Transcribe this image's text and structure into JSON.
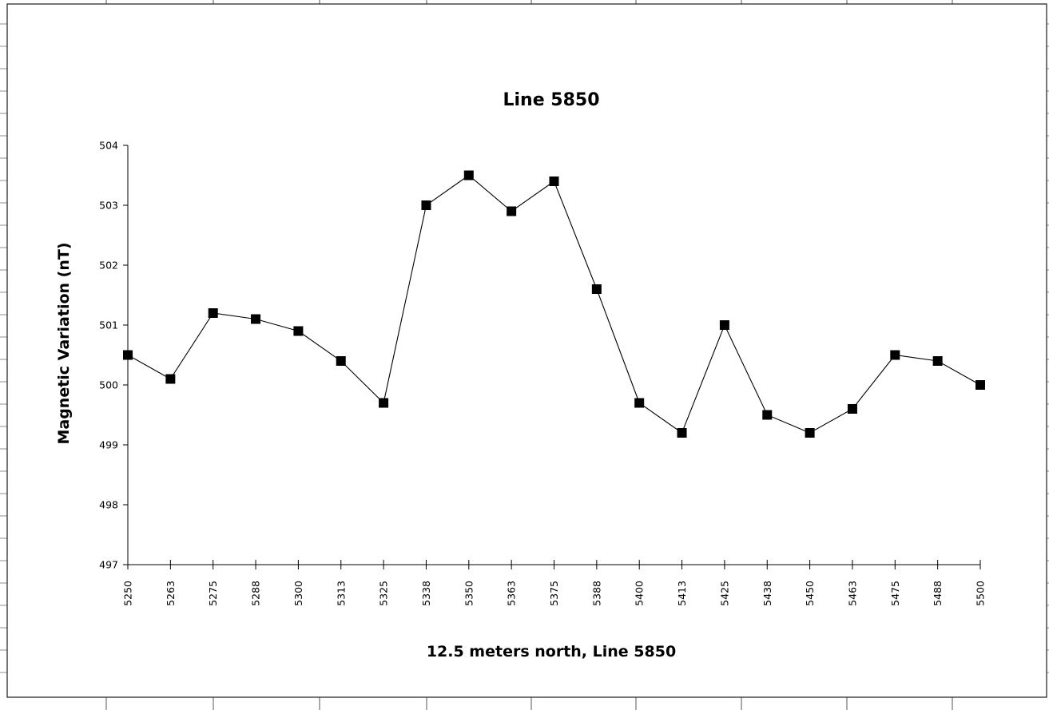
{
  "chart_data": {
    "type": "line",
    "title": "Line 5850",
    "xlabel": "12.5 meters north, Line 5850",
    "ylabel": "Magnetic Variation (nT)",
    "ylim": [
      497,
      504
    ],
    "yticks": [
      "497",
      "498",
      "499",
      "500",
      "501",
      "502",
      "503",
      "504"
    ],
    "categories": [
      "5250",
      "5263",
      "5275",
      "5288",
      "5300",
      "5313",
      "5325",
      "5338",
      "5350",
      "5363",
      "5375",
      "5388",
      "5400",
      "5413",
      "5425",
      "5438",
      "5450",
      "5463",
      "5475",
      "5488",
      "5500"
    ],
    "values": [
      500.5,
      500.1,
      501.2,
      501.1,
      500.9,
      500.4,
      499.7,
      503.0,
      503.5,
      502.9,
      503.4,
      501.6,
      499.7,
      499.2,
      501.0,
      499.5,
      499.2,
      499.6,
      500.5,
      500.4,
      500.0
    ],
    "marker": "square",
    "grid": false,
    "legend": "none",
    "line_color": "#000000",
    "marker_color": "#000000"
  }
}
